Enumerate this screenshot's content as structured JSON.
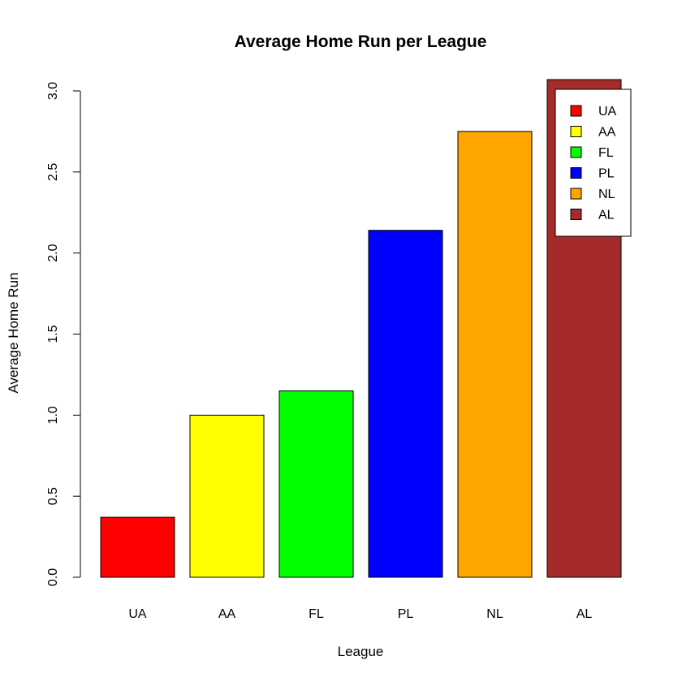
{
  "chart_data": {
    "type": "bar",
    "title": "Average Home Run per League",
    "xlabel": "League",
    "ylabel": "Average Home Run",
    "categories": [
      "UA",
      "AA",
      "FL",
      "PL",
      "NL",
      "AL"
    ],
    "values": [
      0.37,
      1.0,
      1.15,
      2.14,
      2.75,
      3.07
    ],
    "colors": [
      "#FF0000",
      "#FFFF00",
      "#00FF00",
      "#0000FF",
      "#FFA500",
      "#A52A2A"
    ],
    "ylim": [
      0,
      3.07
    ],
    "y_ticks": [
      0.0,
      0.5,
      1.0,
      1.5,
      2.0,
      2.5,
      3.0
    ],
    "y_tick_labels": [
      "0.0",
      "0.5",
      "1.0",
      "1.5",
      "2.0",
      "2.5",
      "3.0"
    ],
    "legend": {
      "position": "top-right",
      "labels": [
        "UA",
        "AA",
        "FL",
        "PL",
        "NL",
        "AL"
      ]
    },
    "grid": false
  }
}
